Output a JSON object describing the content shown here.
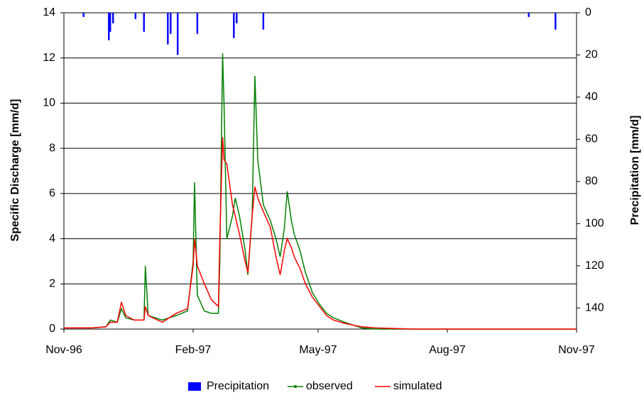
{
  "chart_data": {
    "type": "line",
    "xlabel": null,
    "ylabel": "Specific Discharge [mm/d]",
    "y2label": "Precipitation [mm/d]",
    "xlim": [
      0,
      365
    ],
    "xticks": [
      {
        "value": 0,
        "label": "Nov-96"
      },
      {
        "value": 92,
        "label": "Feb-97"
      },
      {
        "value": 181,
        "label": "May-97"
      },
      {
        "value": 273,
        "label": "Aug-97"
      },
      {
        "value": 365,
        "label": "Nov-97"
      }
    ],
    "ylim": [
      0,
      14
    ],
    "yticks": [
      0,
      2,
      4,
      6,
      8,
      10,
      12,
      14
    ],
    "y2lim": [
      0,
      150
    ],
    "y2inverted": true,
    "y2ticks": [
      0,
      20,
      40,
      60,
      80,
      100,
      120,
      140
    ],
    "grid": true,
    "legend": "bottom",
    "x": [
      0,
      20,
      30,
      33,
      38,
      41,
      44,
      50,
      57,
      58,
      60,
      70,
      80,
      88,
      92,
      93,
      95,
      100,
      105,
      110,
      111,
      113,
      114,
      116,
      120,
      122,
      125,
      129,
      131,
      134,
      136,
      138,
      142,
      147,
      151,
      154,
      157,
      159,
      162,
      164,
      168,
      172,
      177,
      182,
      187,
      192,
      200,
      212,
      222,
      250,
      300,
      365
    ],
    "series": [
      {
        "name": "Precipitation",
        "color": "#0000ff",
        "axis": "y2",
        "type": "bar",
        "x": [
          14,
          32,
          33,
          35,
          51,
          57,
          74,
          76,
          81,
          95,
          121,
          123,
          142,
          331,
          350
        ],
        "values": [
          2,
          13,
          9,
          5,
          3,
          9,
          15,
          10,
          20,
          10,
          12,
          5,
          8,
          2,
          8
        ]
      },
      {
        "name": "observed",
        "color": "#008000",
        "values": [
          0.05,
          0.05,
          0.1,
          0.4,
          0.3,
          0.9,
          0.5,
          0.4,
          0.4,
          2.8,
          0.6,
          0.4,
          0.6,
          0.8,
          3.0,
          6.5,
          1.5,
          0.8,
          0.7,
          0.7,
          3.0,
          12.2,
          10.0,
          4.0,
          5.0,
          5.8,
          5.0,
          3.5,
          2.4,
          5.0,
          11.2,
          7.5,
          5.5,
          4.8,
          4.0,
          3.2,
          4.5,
          6.1,
          4.8,
          4.2,
          3.5,
          2.5,
          1.6,
          1.1,
          0.7,
          0.5,
          0.3,
          0.05,
          0,
          0,
          0,
          0
        ]
      },
      {
        "name": "simulated",
        "color": "#ff0000",
        "values": [
          0.05,
          0.05,
          0.1,
          0.3,
          0.3,
          1.2,
          0.6,
          0.4,
          0.4,
          1.0,
          0.6,
          0.3,
          0.7,
          0.9,
          2.8,
          4.0,
          2.8,
          2.0,
          1.3,
          1.0,
          4.0,
          8.5,
          7.5,
          7.3,
          5.5,
          5.0,
          4.2,
          3.0,
          2.5,
          5.0,
          6.3,
          5.8,
          5.2,
          4.5,
          3.2,
          2.4,
          3.5,
          4.0,
          3.6,
          3.2,
          2.7,
          2.0,
          1.4,
          1.0,
          0.6,
          0.4,
          0.25,
          0.1,
          0.05,
          0,
          0,
          0
        ]
      }
    ]
  }
}
